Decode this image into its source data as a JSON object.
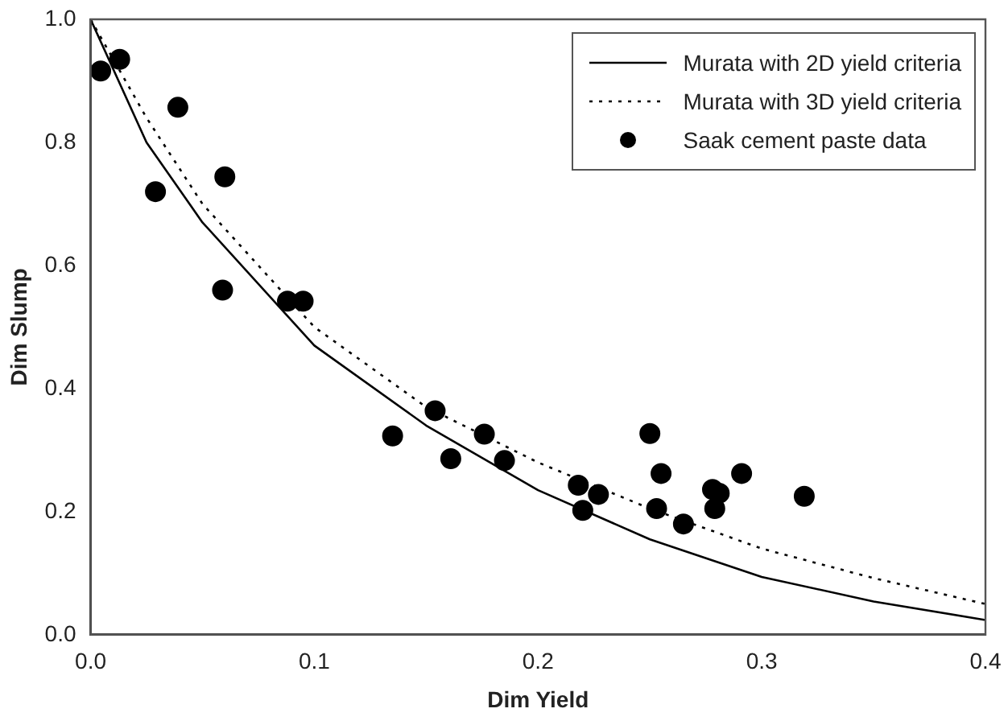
{
  "chart_data": {
    "type": "scatter",
    "xlabel": "Dim Yield",
    "ylabel": "Dim Slump",
    "xlim": [
      0,
      0.4
    ],
    "xticks": [
      {
        "value": 0,
        "label": "0.0"
      },
      0.1,
      0.2,
      0.3,
      0.4
    ],
    "ylim": [
      0,
      1
    ],
    "yticks": [
      {
        "value": 0,
        "label": "0.0"
      },
      0.2,
      0.4,
      0.6,
      0.8,
      {
        "value": 1,
        "label": "1.0"
      }
    ],
    "grid": false,
    "legend": "top right",
    "series": [
      {
        "name": "Murata with 2D yield criteria",
        "type": "line",
        "line_style": "solid",
        "marker": "none",
        "color": "#000000",
        "x": [
          0,
          0.025,
          0.05,
          0.1,
          0.15,
          0.2,
          0.25,
          0.3,
          0.35,
          0.4
        ],
        "values": [
          1,
          0.8,
          0.67,
          0.47,
          0.34,
          0.235,
          0.155,
          0.094,
          0.054,
          0.024
        ]
      },
      {
        "name": "Murata with 3D yield criteria",
        "type": "line",
        "line_style": "dotted",
        "marker": "none",
        "color": "#000000",
        "x": [
          0,
          0.025,
          0.05,
          0.1,
          0.15,
          0.2,
          0.25,
          0.3,
          0.35,
          0.4
        ],
        "values": [
          1,
          0.84,
          0.7,
          0.5,
          0.37,
          0.28,
          0.205,
          0.14,
          0.092,
          0.05
        ]
      },
      {
        "name": "Saak cement paste data",
        "type": "scatter",
        "marker": "circle",
        "color": "#000000",
        "x": [
          0.0045,
          0.013,
          0.029,
          0.039,
          0.06,
          0.059,
          0.088,
          0.095,
          0.135,
          0.154,
          0.161,
          0.176,
          0.185,
          0.218,
          0.22,
          0.227,
          0.25,
          0.253,
          0.255,
          0.265,
          0.278,
          0.279,
          0.281,
          0.291,
          0.319
        ],
        "values": [
          0.916,
          0.935,
          0.72,
          0.857,
          0.744,
          0.56,
          0.542,
          0.542,
          0.323,
          0.364,
          0.286,
          0.326,
          0.283,
          0.243,
          0.202,
          0.228,
          0.327,
          0.205,
          0.262,
          0.18,
          0.236,
          0.205,
          0.23,
          0.262,
          0.225
        ]
      }
    ]
  }
}
